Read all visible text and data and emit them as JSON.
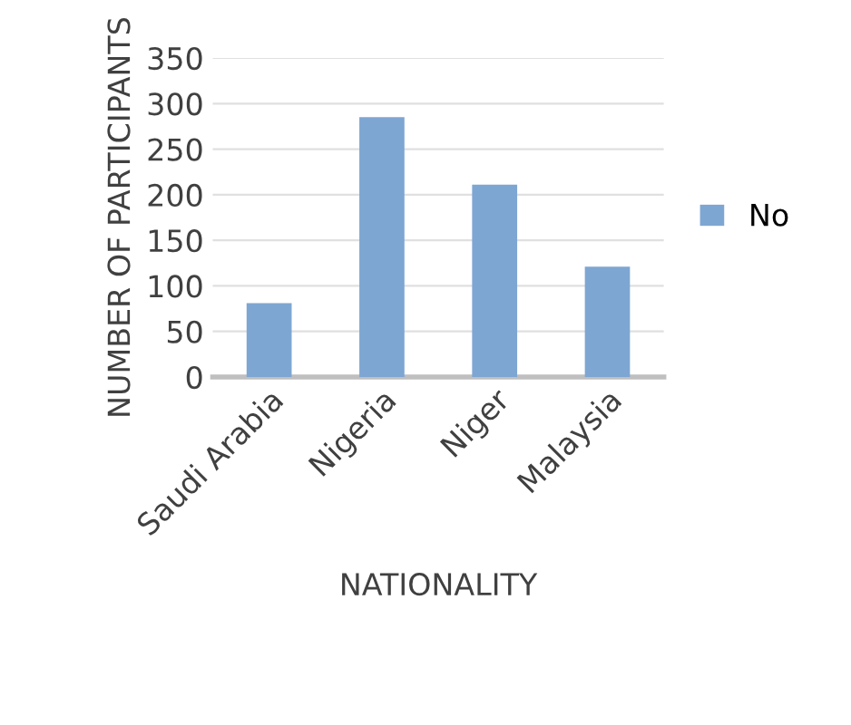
{
  "chart_data": {
    "type": "bar",
    "xlabel": "NATIONALITY",
    "ylabel": "NUMBER OF PARTICIPANTS",
    "categories": [
      "Saudi Arabia",
      "Nigeria",
      "Niger",
      "Malaysia"
    ],
    "series": [
      {
        "name": "No",
        "color": "#7ea6d2",
        "values": [
          81,
          285,
          211,
          121
        ]
      }
    ],
    "ylim": [
      0,
      350
    ],
    "yticks": [
      0,
      50,
      100,
      150,
      200,
      250,
      300,
      350
    ],
    "grid": "y",
    "legend": "right"
  }
}
